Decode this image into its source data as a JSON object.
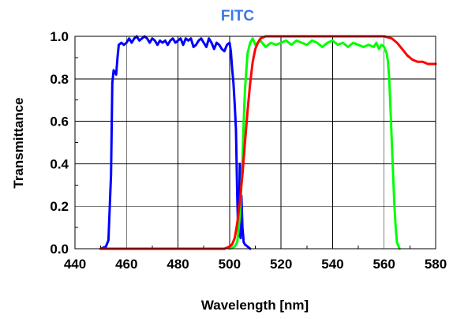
{
  "chart_data": {
    "type": "line",
    "title": "FITC",
    "xlabel": "Wavelength [nm]",
    "ylabel": "Transmittance",
    "xlim": [
      440,
      580
    ],
    "ylim": [
      0,
      1.0
    ],
    "x_ticks": [
      "440",
      "460",
      "480",
      "500",
      "520",
      "540",
      "560",
      "580"
    ],
    "y_ticks": [
      "0.0",
      "0.2",
      "0.4",
      "0.6",
      "0.8",
      "1.0"
    ],
    "grid": true,
    "colors": {
      "title": "#3b78e7"
    },
    "series": [
      {
        "color": "#0000ff",
        "x": [
          450,
          452,
          453,
          454,
          454.5,
          455,
          456,
          456.5,
          457,
          458,
          459,
          460,
          461,
          462,
          463,
          464,
          465,
          466,
          467,
          468,
          469,
          470,
          471,
          472,
          473,
          474,
          475,
          476,
          477,
          478,
          479,
          480,
          481,
          482,
          483,
          484,
          485,
          486,
          487,
          488,
          489,
          490,
          491,
          492,
          493,
          494,
          495,
          496,
          497,
          498,
          499,
          500,
          500.5,
          501,
          501.5,
          502,
          502.5,
          503,
          503.3,
          503.6,
          504,
          504.3,
          504.6,
          505,
          505.5,
          506,
          507,
          508
        ],
        "y": [
          0.0,
          0.01,
          0.04,
          0.35,
          0.78,
          0.84,
          0.82,
          0.9,
          0.96,
          0.97,
          0.96,
          0.97,
          0.99,
          0.97,
          0.99,
          1.0,
          0.98,
          0.99,
          1.0,
          0.99,
          0.97,
          0.99,
          0.98,
          0.96,
          0.98,
          0.97,
          0.98,
          0.96,
          0.98,
          0.99,
          0.97,
          0.98,
          0.99,
          0.96,
          0.99,
          0.98,
          0.99,
          0.95,
          0.96,
          0.98,
          0.99,
          0.97,
          0.95,
          0.99,
          0.97,
          0.94,
          0.97,
          0.96,
          0.94,
          0.93,
          0.96,
          0.97,
          0.93,
          0.85,
          0.78,
          0.68,
          0.56,
          0.25,
          0.1,
          0.06,
          0.4,
          0.05,
          0.25,
          0.1,
          0.03,
          0.02,
          0.01,
          0.0
        ]
      },
      {
        "color": "#00ff00",
        "x": [
          500,
          502,
          503,
          504,
          505,
          505.5,
          506,
          507,
          508,
          509,
          510,
          512,
          514,
          516,
          518,
          520,
          522,
          524,
          526,
          528,
          530,
          532,
          534,
          536,
          538,
          540,
          542,
          544,
          546,
          548,
          550,
          552,
          554,
          556,
          557,
          558,
          559,
          560,
          561,
          561.5,
          562,
          562.5,
          563,
          563.5,
          564,
          564.5,
          565,
          566
        ],
        "y": [
          0.0,
          0.01,
          0.03,
          0.15,
          0.4,
          0.6,
          0.75,
          0.92,
          0.97,
          0.99,
          0.96,
          0.98,
          0.95,
          0.97,
          0.96,
          0.97,
          0.98,
          0.96,
          0.98,
          0.97,
          0.96,
          0.98,
          0.97,
          0.95,
          0.97,
          0.98,
          0.96,
          0.97,
          0.95,
          0.97,
          0.96,
          0.95,
          0.96,
          0.95,
          0.97,
          0.94,
          0.96,
          0.95,
          0.92,
          0.88,
          0.8,
          0.65,
          0.5,
          0.35,
          0.2,
          0.1,
          0.03,
          0.0
        ]
      },
      {
        "color": "#ff0000",
        "x": [
          450,
          460,
          470,
          480,
          490,
          498,
          500,
          501,
          502,
          503,
          504,
          505,
          506,
          507,
          508,
          509,
          510,
          511,
          512,
          514,
          516,
          520,
          530,
          540,
          550,
          560,
          563,
          565,
          567,
          569,
          571,
          573,
          575,
          577,
          580
        ],
        "y": [
          0.0,
          0.0,
          0.0,
          0.0,
          0.0,
          0.0,
          0.01,
          0.02,
          0.05,
          0.12,
          0.22,
          0.35,
          0.5,
          0.65,
          0.78,
          0.88,
          0.94,
          0.97,
          0.99,
          1.0,
          1.0,
          1.0,
          1.0,
          1.0,
          1.0,
          1.0,
          0.99,
          0.97,
          0.94,
          0.91,
          0.89,
          0.88,
          0.88,
          0.87,
          0.87
        ]
      }
    ]
  }
}
